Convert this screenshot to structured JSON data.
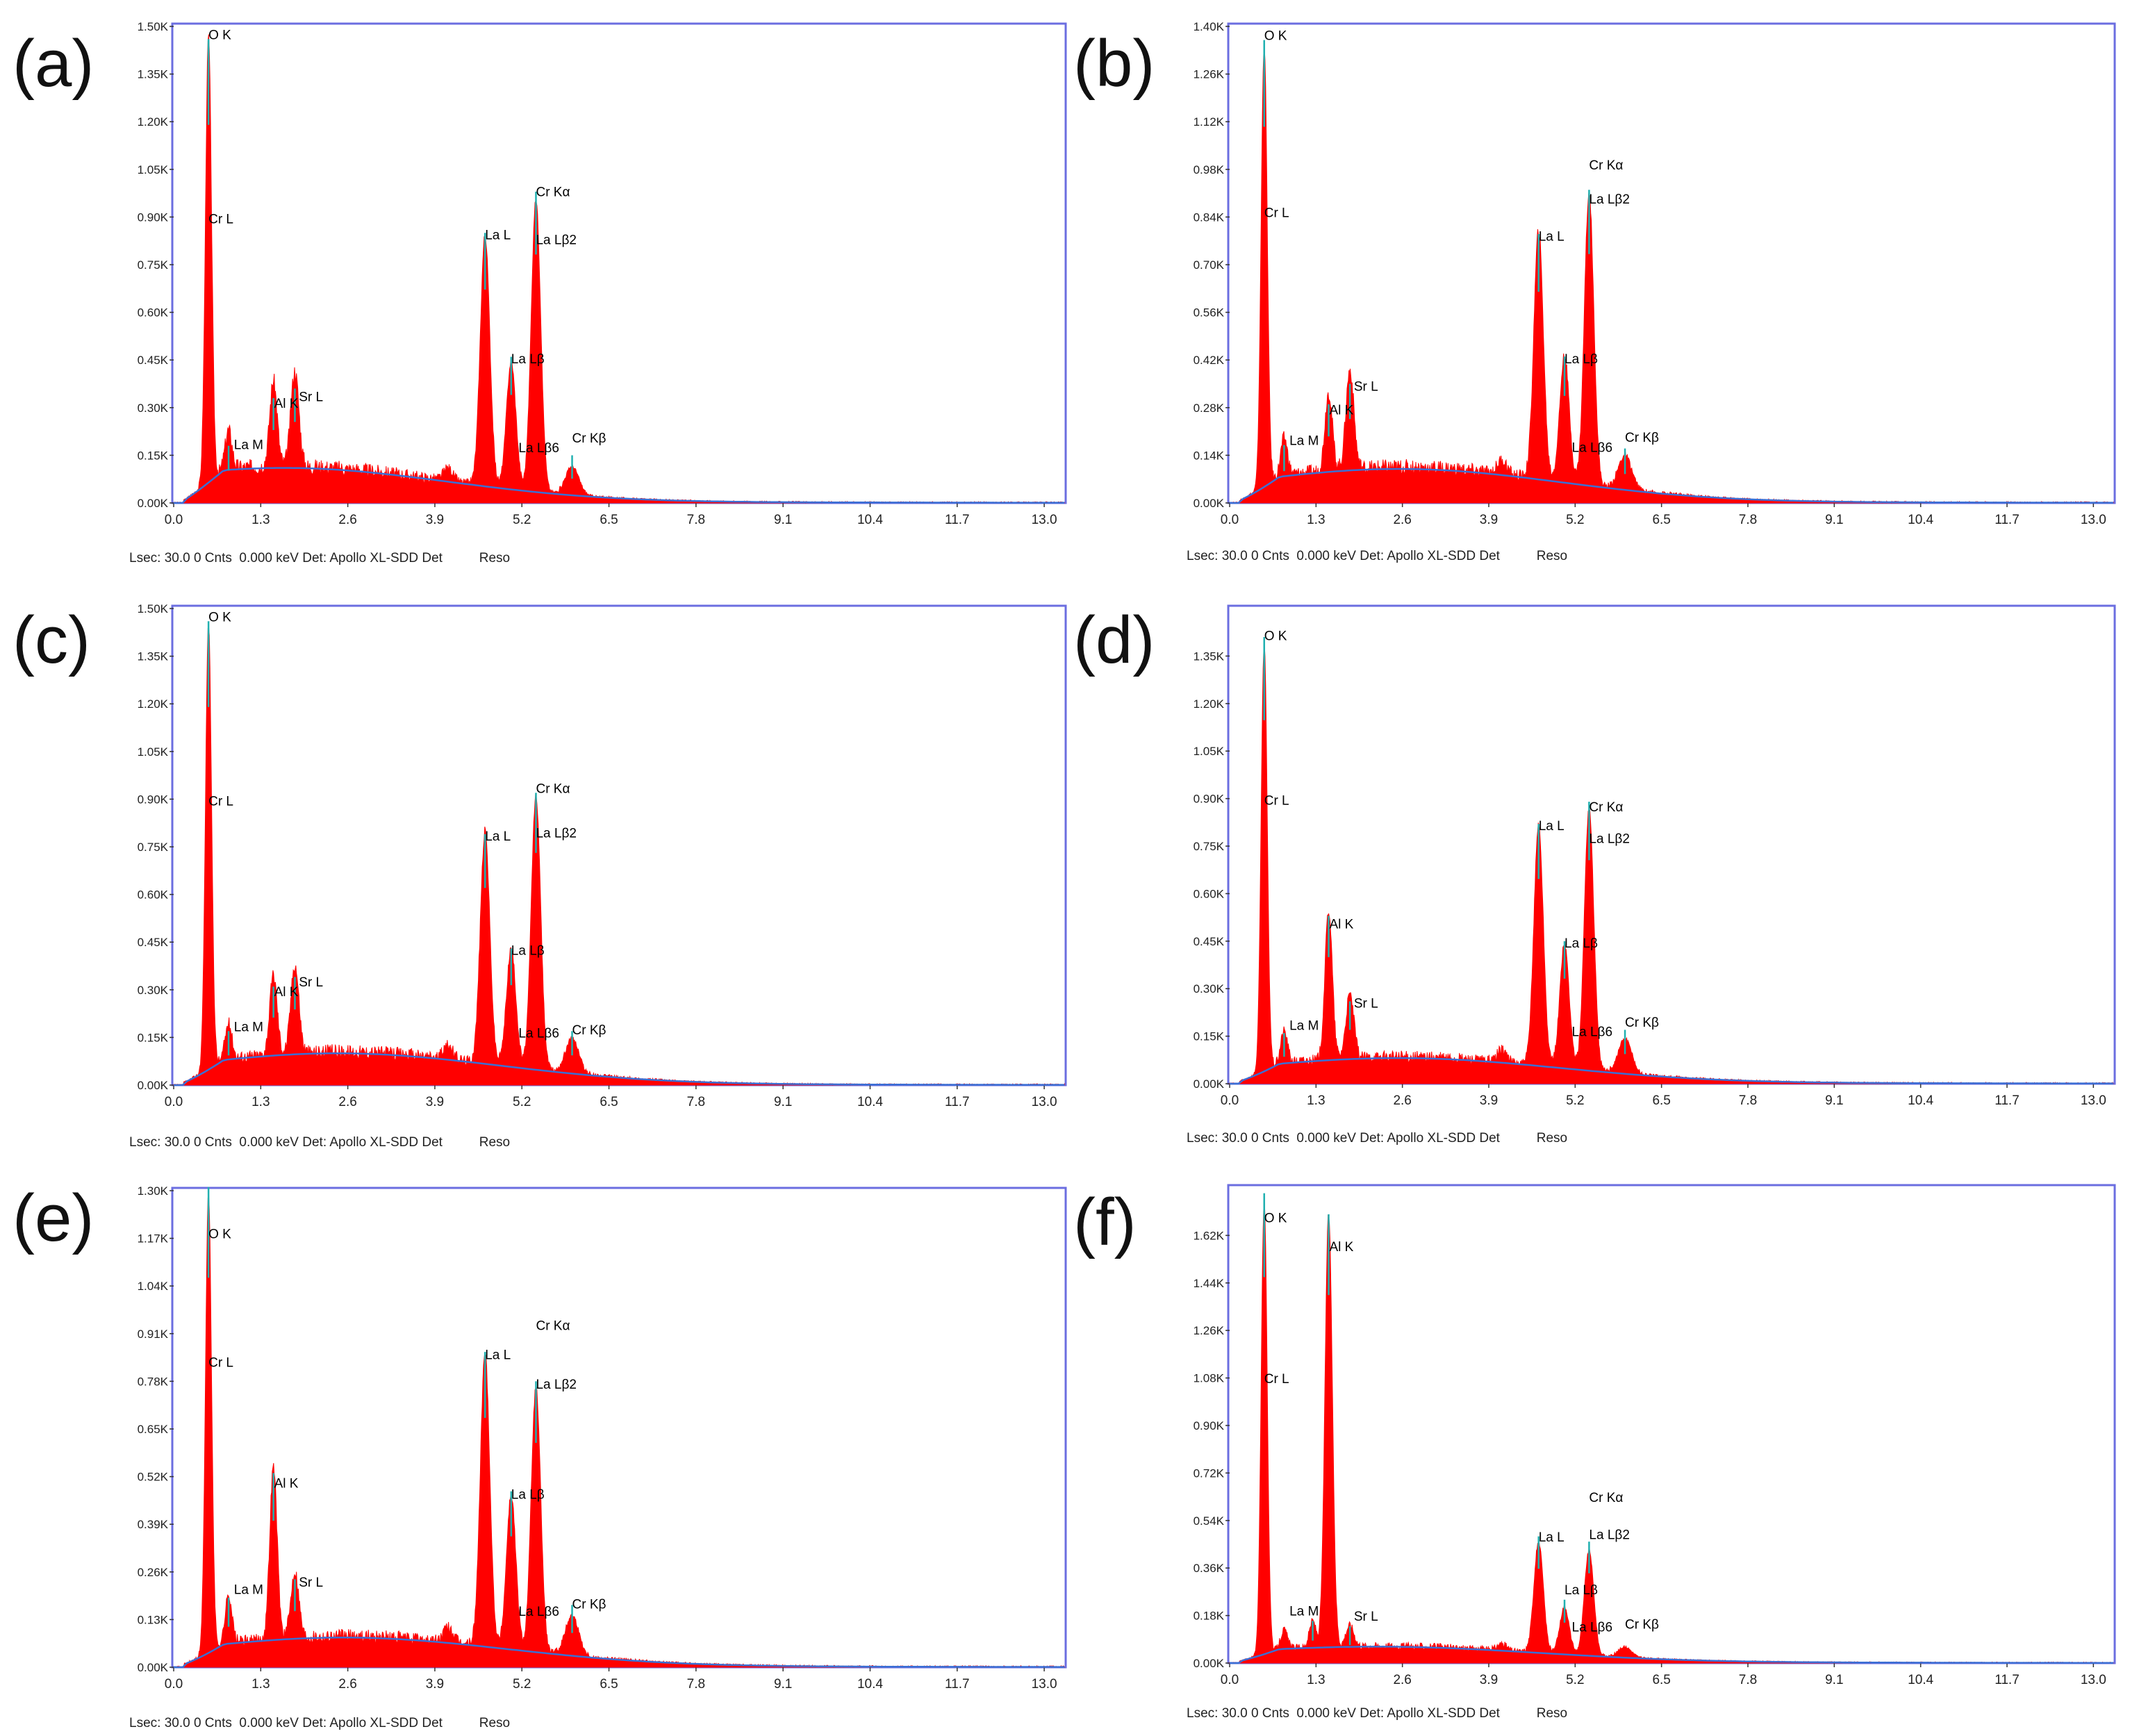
{
  "colors": {
    "frame": "#6b6ee0",
    "spectrum": "#ff0000",
    "background": "#3b6fd4",
    "marker": "#20b0b0",
    "label": "#000000"
  },
  "chart_data": [
    {
      "type": "area",
      "panel": "(a)",
      "xticks": [
        "0.0",
        "1.3",
        "2.6",
        "3.9",
        "5.2",
        "6.5",
        "7.8",
        "9.1",
        "10.4",
        "11.7",
        "13.0"
      ],
      "xlim": [
        0,
        13.3
      ],
      "yticks": [
        "0.00K",
        "0.15K",
        "0.30K",
        "0.45K",
        "0.60K",
        "0.75K",
        "0.90K",
        "1.05K",
        "1.20K",
        "1.35K",
        "1.50K"
      ],
      "ylim": [
        0,
        1500
      ],
      "peaks": [
        {
          "x": 0.52,
          "y": 1400,
          "w": 0.045
        },
        {
          "x": 0.82,
          "y": 120,
          "w": 0.05
        },
        {
          "x": 1.49,
          "y": 270,
          "w": 0.055
        },
        {
          "x": 1.81,
          "y": 300,
          "w": 0.06
        },
        {
          "x": 4.65,
          "y": 790,
          "w": 0.07
        },
        {
          "x": 5.04,
          "y": 400,
          "w": 0.07
        },
        {
          "x": 5.41,
          "y": 920,
          "w": 0.07
        },
        {
          "x": 5.95,
          "y": 90,
          "w": 0.1
        },
        {
          "x": 4.1,
          "y": 40,
          "w": 0.07
        }
      ],
      "bg": {
        "peak": 110,
        "at": 1.7
      },
      "labels": [
        {
          "text": "O  K",
          "x": 0.52,
          "y": 1460
        },
        {
          "text": "Cr L",
          "x": 0.52,
          "y": 880
        },
        {
          "text": "La M",
          "x": 0.9,
          "y": 170
        },
        {
          "text": "Al K",
          "x": 1.5,
          "y": 300
        },
        {
          "text": "Sr L",
          "x": 1.87,
          "y": 320
        },
        {
          "text": "La L",
          "x": 4.65,
          "y": 830
        },
        {
          "text": "La Lβ",
          "x": 5.04,
          "y": 440
        },
        {
          "text": "Cr Kα",
          "x": 5.41,
          "y": 965
        },
        {
          "text": "La Lβ2",
          "x": 5.41,
          "y": 815
        },
        {
          "text": "La Lβ6",
          "x": 5.15,
          "y": 160
        },
        {
          "text": "Cr Kβ",
          "x": 5.95,
          "y": 190
        }
      ],
      "footer": "Lsec: 30.0 0 Cnts  0.000 keV Det: Apollo XL-SDD Det          Reso"
    },
    {
      "type": "area",
      "panel": "(b)",
      "xticks": [
        "0.0",
        "1.3",
        "2.6",
        "3.9",
        "5.2",
        "6.5",
        "7.8",
        "9.1",
        "10.4",
        "11.7",
        "13.0"
      ],
      "xlim": [
        0,
        13.3
      ],
      "yticks": [
        "0.00K",
        "0.14K",
        "0.28K",
        "0.42K",
        "0.56K",
        "0.70K",
        "0.84K",
        "0.98K",
        "1.12K",
        "1.26K",
        "1.40K"
      ],
      "ylim": [
        0,
        1400
      ],
      "peaks": [
        {
          "x": 0.52,
          "y": 1300,
          "w": 0.045
        },
        {
          "x": 0.82,
          "y": 110,
          "w": 0.05
        },
        {
          "x": 1.49,
          "y": 230,
          "w": 0.055
        },
        {
          "x": 1.81,
          "y": 290,
          "w": 0.06
        },
        {
          "x": 4.65,
          "y": 730,
          "w": 0.07
        },
        {
          "x": 5.04,
          "y": 370,
          "w": 0.07
        },
        {
          "x": 5.41,
          "y": 860,
          "w": 0.07
        },
        {
          "x": 5.95,
          "y": 100,
          "w": 0.1
        },
        {
          "x": 4.1,
          "y": 40,
          "w": 0.07
        }
      ],
      "bg": {
        "peak": 100,
        "at": 2.6
      },
      "labels": [
        {
          "text": "O  K",
          "x": 0.52,
          "y": 1360
        },
        {
          "text": "Cr L",
          "x": 0.52,
          "y": 840
        },
        {
          "text": "La M",
          "x": 0.9,
          "y": 170
        },
        {
          "text": "Al K",
          "x": 1.5,
          "y": 260
        },
        {
          "text": "Sr L",
          "x": 1.87,
          "y": 330
        },
        {
          "text": "La L",
          "x": 4.65,
          "y": 770
        },
        {
          "text": "La Lβ",
          "x": 5.04,
          "y": 410
        },
        {
          "text": "Cr Kα",
          "x": 5.41,
          "y": 980
        },
        {
          "text": "La Lβ2",
          "x": 5.41,
          "y": 880
        },
        {
          "text": "La Lβ6",
          "x": 5.15,
          "y": 150
        },
        {
          "text": "Cr Kβ",
          "x": 5.95,
          "y": 180
        }
      ],
      "footer": "Lsec: 30.0 0 Cnts  0.000 keV Det: Apollo XL-SDD Det          Reso"
    },
    {
      "type": "area",
      "panel": "(c)",
      "xticks": [
        "0.0",
        "1.3",
        "2.6",
        "3.9",
        "5.2",
        "6.5",
        "7.8",
        "9.1",
        "10.4",
        "11.7",
        "13.0"
      ],
      "xlim": [
        0,
        13.3
      ],
      "yticks": [
        "0.00K",
        "0.15K",
        "0.30K",
        "0.45K",
        "0.60K",
        "0.75K",
        "0.90K",
        "1.05K",
        "1.20K",
        "1.35K",
        "1.50K"
      ],
      "ylim": [
        0,
        1500
      ],
      "peaks": [
        {
          "x": 0.52,
          "y": 1400,
          "w": 0.045
        },
        {
          "x": 0.82,
          "y": 110,
          "w": 0.05
        },
        {
          "x": 1.49,
          "y": 250,
          "w": 0.055
        },
        {
          "x": 1.81,
          "y": 280,
          "w": 0.06
        },
        {
          "x": 4.65,
          "y": 730,
          "w": 0.07
        },
        {
          "x": 5.04,
          "y": 370,
          "w": 0.07
        },
        {
          "x": 5.41,
          "y": 860,
          "w": 0.07
        },
        {
          "x": 5.95,
          "y": 110,
          "w": 0.1
        },
        {
          "x": 4.1,
          "y": 40,
          "w": 0.07
        }
      ],
      "bg": {
        "peak": 100,
        "at": 2.5
      },
      "labels": [
        {
          "text": "O  K",
          "x": 0.52,
          "y": 1460
        },
        {
          "text": "Cr L",
          "x": 0.52,
          "y": 880
        },
        {
          "text": "La M",
          "x": 0.9,
          "y": 170
        },
        {
          "text": "Al K",
          "x": 1.5,
          "y": 280
        },
        {
          "text": "Sr L",
          "x": 1.87,
          "y": 310
        },
        {
          "text": "La L",
          "x": 4.65,
          "y": 770
        },
        {
          "text": "La Lβ",
          "x": 5.04,
          "y": 410
        },
        {
          "text": "Cr Kα",
          "x": 5.41,
          "y": 920
        },
        {
          "text": "La Lβ2",
          "x": 5.41,
          "y": 780
        },
        {
          "text": "La Lβ6",
          "x": 5.15,
          "y": 150
        },
        {
          "text": "Cr Kβ",
          "x": 5.95,
          "y": 160
        }
      ],
      "footer": "Lsec: 30.0 0 Cnts  0.000 keV Det: Apollo XL-SDD Det          Reso"
    },
    {
      "type": "area",
      "panel": "(d)",
      "xticks": [
        "0.0",
        "1.3",
        "2.6",
        "3.9",
        "5.2",
        "6.5",
        "7.8",
        "9.1",
        "10.4",
        "11.7",
        "13.0"
      ],
      "xlim": [
        0,
        13.3
      ],
      "yticks": [
        "0.00K",
        "0.15K",
        "0.30K",
        "0.45K",
        "0.60K",
        "0.75K",
        "0.90K",
        "1.05K",
        "1.20K",
        "1.35K"
      ],
      "ylim": [
        0,
        1500
      ],
      "peaks": [
        {
          "x": 0.52,
          "y": 1350,
          "w": 0.045
        },
        {
          "x": 0.82,
          "y": 100,
          "w": 0.05
        },
        {
          "x": 1.49,
          "y": 470,
          "w": 0.055
        },
        {
          "x": 1.81,
          "y": 200,
          "w": 0.06
        },
        {
          "x": 4.65,
          "y": 760,
          "w": 0.07
        },
        {
          "x": 5.04,
          "y": 390,
          "w": 0.07
        },
        {
          "x": 5.41,
          "y": 830,
          "w": 0.07
        },
        {
          "x": 5.95,
          "y": 110,
          "w": 0.1
        },
        {
          "x": 4.1,
          "y": 40,
          "w": 0.07
        }
      ],
      "bg": {
        "peak": 80,
        "at": 2.6
      },
      "labels": [
        {
          "text": "O  K",
          "x": 0.52,
          "y": 1400
        },
        {
          "text": "Cr L",
          "x": 0.52,
          "y": 880
        },
        {
          "text": "La M",
          "x": 0.9,
          "y": 170
        },
        {
          "text": "Al K",
          "x": 1.5,
          "y": 490
        },
        {
          "text": "Sr L",
          "x": 1.87,
          "y": 240
        },
        {
          "text": "La L",
          "x": 4.65,
          "y": 800
        },
        {
          "text": "La Lβ",
          "x": 5.04,
          "y": 430
        },
        {
          "text": "Cr Kα",
          "x": 5.41,
          "y": 860
        },
        {
          "text": "La Lβ2",
          "x": 5.41,
          "y": 760
        },
        {
          "text": "La Lβ6",
          "x": 5.15,
          "y": 150
        },
        {
          "text": "Cr Kβ",
          "x": 5.95,
          "y": 180
        }
      ],
      "footer": "Lsec: 30.0 0 Cnts  0.000 keV Det: Apollo XL-SDD Det          Reso"
    },
    {
      "type": "area",
      "panel": "(e)",
      "xticks": [
        "0.0",
        "1.3",
        "2.6",
        "3.9",
        "5.2",
        "6.5",
        "7.8",
        "9.1",
        "10.4",
        "11.7",
        "13.0"
      ],
      "xlim": [
        0,
        13.3
      ],
      "yticks": [
        "0.00K",
        "0.13K",
        "0.26K",
        "0.39K",
        "0.52K",
        "0.65K",
        "0.78K",
        "0.91K",
        "1.04K",
        "1.17K",
        "1.30K"
      ],
      "ylim": [
        0,
        1300
      ],
      "peaks": [
        {
          "x": 0.52,
          "y": 1250,
          "w": 0.045
        },
        {
          "x": 0.82,
          "y": 130,
          "w": 0.05
        },
        {
          "x": 1.49,
          "y": 470,
          "w": 0.055
        },
        {
          "x": 1.81,
          "y": 180,
          "w": 0.06
        },
        {
          "x": 4.65,
          "y": 800,
          "w": 0.07
        },
        {
          "x": 5.04,
          "y": 420,
          "w": 0.07
        },
        {
          "x": 5.41,
          "y": 720,
          "w": 0.07
        },
        {
          "x": 5.95,
          "y": 110,
          "w": 0.1
        },
        {
          "x": 4.1,
          "y": 40,
          "w": 0.07
        }
      ],
      "bg": {
        "peak": 80,
        "at": 2.6
      },
      "labels": [
        {
          "text": "O  K",
          "x": 0.52,
          "y": 1170
        },
        {
          "text": "Cr L",
          "x": 0.52,
          "y": 820
        },
        {
          "text": "La M",
          "x": 0.9,
          "y": 200
        },
        {
          "text": "Al K",
          "x": 1.5,
          "y": 490
        },
        {
          "text": "Sr L",
          "x": 1.87,
          "y": 220
        },
        {
          "text": "La L",
          "x": 4.65,
          "y": 840
        },
        {
          "text": "La Lβ",
          "x": 5.04,
          "y": 460
        },
        {
          "text": "Cr Kα",
          "x": 5.41,
          "y": 920
        },
        {
          "text": "La Lβ2",
          "x": 5.41,
          "y": 760
        },
        {
          "text": "La Lβ6",
          "x": 5.15,
          "y": 140
        },
        {
          "text": "Cr Kβ",
          "x": 5.95,
          "y": 160
        }
      ],
      "footer": "Lsec: 30.0 0 Cnts  0.000 keV Det: Apollo XL-SDD Det          Reso"
    },
    {
      "type": "area",
      "panel": "(f)",
      "xticks": [
        "0.0",
        "1.3",
        "2.6",
        "3.9",
        "5.2",
        "6.5",
        "7.8",
        "9.1",
        "10.4",
        "11.7",
        "13.0"
      ],
      "xlim": [
        0,
        13.3
      ],
      "yticks": [
        "0.00K",
        "0.18K",
        "0.36K",
        "0.54K",
        "0.72K",
        "0.90K",
        "1.08K",
        "1.26K",
        "1.44K",
        "1.62K"
      ],
      "ylim": [
        0,
        1800
      ],
      "peaks": [
        {
          "x": 0.52,
          "y": 1720,
          "w": 0.045
        },
        {
          "x": 0.82,
          "y": 70,
          "w": 0.05
        },
        {
          "x": 1.25,
          "y": 100,
          "w": 0.05
        },
        {
          "x": 1.49,
          "y": 1640,
          "w": 0.055
        },
        {
          "x": 1.81,
          "y": 80,
          "w": 0.06
        },
        {
          "x": 4.65,
          "y": 420,
          "w": 0.07
        },
        {
          "x": 5.04,
          "y": 180,
          "w": 0.07
        },
        {
          "x": 5.41,
          "y": 400,
          "w": 0.07
        },
        {
          "x": 5.95,
          "y": 40,
          "w": 0.1
        },
        {
          "x": 4.1,
          "y": 25,
          "w": 0.07
        }
      ],
      "bg": {
        "peak": 60,
        "at": 2.3
      },
      "labels": [
        {
          "text": "O  K",
          "x": 0.52,
          "y": 1670
        },
        {
          "text": "Al K",
          "x": 1.5,
          "y": 1560
        },
        {
          "text": "Cr L",
          "x": 0.52,
          "y": 1060
        },
        {
          "text": "La M",
          "x": 0.9,
          "y": 180
        },
        {
          "text": "Sr L",
          "x": 1.87,
          "y": 160
        },
        {
          "text": "La L",
          "x": 4.65,
          "y": 460
        },
        {
          "text": "La Lβ",
          "x": 5.04,
          "y": 260
        },
        {
          "text": "Cr Kα",
          "x": 5.41,
          "y": 610
        },
        {
          "text": "La Lβ2",
          "x": 5.41,
          "y": 470
        },
        {
          "text": "La Lβ6",
          "x": 5.15,
          "y": 120
        },
        {
          "text": "Cr Kβ",
          "x": 5.95,
          "y": 130
        }
      ],
      "footer": "Lsec: 30.0 0 Cnts  0.000 keV Det: Apollo XL-SDD Det          Reso"
    }
  ]
}
